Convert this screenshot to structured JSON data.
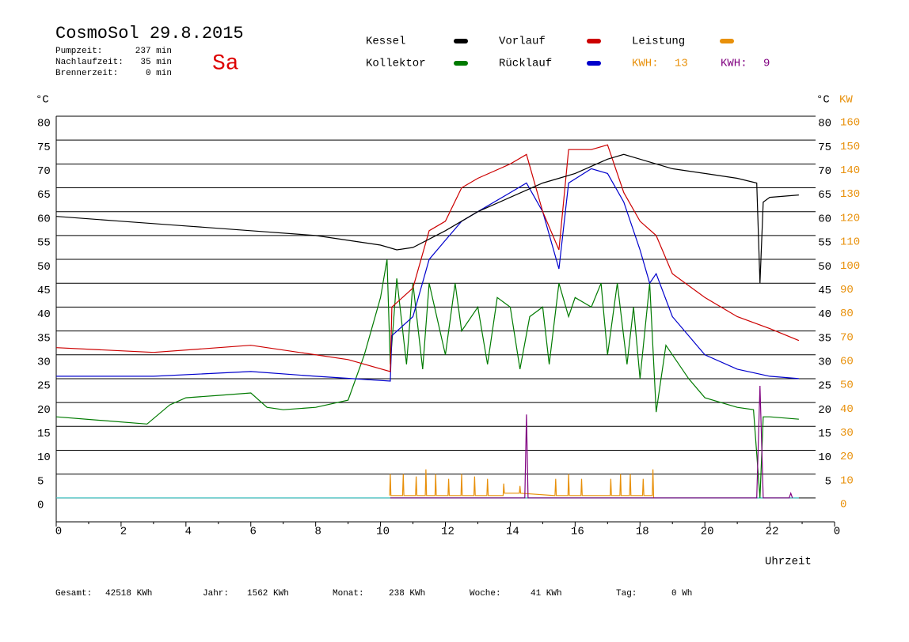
{
  "header": {
    "title": "CosmoSol 29.8.2015",
    "day": "Sa",
    "stats": [
      {
        "label": "Pumpzeit:",
        "value": "237 min"
      },
      {
        "label": "Nachlaufzeit:",
        "value": "35 min"
      },
      {
        "label": "Brennerzeit:",
        "value": "0 min"
      }
    ]
  },
  "chart_data": {
    "type": "line",
    "y_label": "°C",
    "y_right_label": "°C",
    "y2_label": "KW",
    "x_label": "Uhrzeit",
    "xlim": [
      0,
      24
    ],
    "xticks": [
      0,
      2,
      4,
      6,
      8,
      10,
      12,
      14,
      16,
      18,
      20,
      22,
      {
        "value": 24,
        "label": "0"
      }
    ],
    "ylim": [
      -5,
      80
    ],
    "yticks": [
      0,
      5,
      10,
      15,
      20,
      25,
      30,
      35,
      40,
      45,
      50,
      55,
      60,
      65,
      70,
      75,
      80
    ],
    "y_right_ticks": [
      5,
      10,
      15,
      20,
      25,
      30,
      35,
      40,
      45,
      50,
      55,
      60,
      65,
      70,
      75,
      80
    ],
    "y2lim": [
      -10,
      160
    ],
    "y2ticks": [
      0,
      10,
      20,
      30,
      40,
      50,
      60,
      70,
      80,
      90,
      100,
      110,
      120,
      130,
      140,
      150,
      160
    ],
    "grid": true,
    "series": [
      {
        "name": "Kessel",
        "color": "#000000",
        "x": [
          0,
          2,
          4,
          6,
          8,
          10,
          10.5,
          11,
          12,
          13,
          14,
          15,
          15.5,
          16,
          17,
          17.5,
          18,
          19,
          20,
          21,
          21.6,
          21.7,
          21.8,
          22,
          22.9
        ],
        "values": [
          59,
          58,
          57,
          56,
          55,
          53,
          52,
          52.5,
          56,
          60,
          63,
          66,
          67,
          68,
          71,
          72,
          71,
          69,
          68,
          67,
          66,
          45,
          62,
          63,
          63.5
        ]
      },
      {
        "name": "Vorlauf",
        "color": "#cc0000",
        "x": [
          0,
          3,
          6,
          9,
          10.3,
          10.35,
          11,
          11.5,
          12,
          12.5,
          13,
          14,
          14.5,
          15,
          15.5,
          15.8,
          16.5,
          17,
          17.5,
          18,
          18.5,
          19,
          20,
          21,
          22,
          22.9
        ],
        "values": [
          31.5,
          30.5,
          32,
          29,
          26.5,
          40,
          44,
          56,
          58,
          65,
          67,
          70,
          72,
          60,
          52,
          73,
          73,
          74,
          64,
          58,
          55,
          47,
          42,
          38,
          35.5,
          33
        ]
      },
      {
        "name": "Leistung",
        "color": "#e8900a",
        "axis": "y2",
        "x": [
          10.28,
          10.3,
          10.32,
          10.68,
          10.7,
          10.72,
          11.08,
          11.1,
          11.12,
          11.38,
          11.4,
          11.42,
          11.68,
          11.7,
          11.72,
          12.08,
          12.1,
          12.12,
          12.48,
          12.5,
          12.52,
          12.88,
          12.9,
          12.92,
          13.28,
          13.3,
          13.32,
          13.78,
          13.8,
          13.82,
          14.28,
          14.3,
          14.32,
          15.38,
          15.4,
          15.42,
          15.78,
          15.8,
          15.82,
          16.18,
          16.2,
          16.22,
          17.08,
          17.1,
          17.12,
          17.38,
          17.4,
          17.42,
          17.68,
          17.7,
          17.72,
          18.08,
          18.1,
          18.12,
          18.38,
          18.4,
          18.42
        ],
        "values": [
          1,
          10,
          1,
          1,
          10,
          1,
          1,
          9,
          1,
          1,
          12,
          1,
          1,
          10,
          1,
          1,
          8,
          1,
          1,
          10,
          1,
          1,
          9,
          1,
          1,
          8,
          1,
          1,
          6,
          2,
          2,
          5,
          2,
          1,
          8,
          1,
          1,
          10,
          1,
          1,
          8,
          1,
          1,
          8,
          1,
          1,
          10,
          1,
          1,
          10,
          1,
          1,
          8,
          1,
          1,
          12,
          0
        ]
      },
      {
        "name": "Kollektor",
        "color": "#007a00",
        "x": [
          0,
          2.8,
          3.5,
          4,
          5,
          6,
          6.5,
          7,
          8,
          9,
          9.5,
          10,
          10.2,
          10.3,
          10.5,
          10.8,
          11,
          11.3,
          11.5,
          12,
          12.3,
          12.5,
          13,
          13.3,
          13.6,
          14,
          14.3,
          14.6,
          15,
          15.2,
          15.5,
          15.8,
          16,
          16.5,
          16.8,
          17,
          17.3,
          17.6,
          17.8,
          18,
          18.3,
          18.5,
          18.8,
          19.5,
          20,
          21,
          21.5,
          21.7,
          21.8,
          22,
          22.9
        ],
        "values": [
          17,
          15.5,
          19.5,
          21,
          21.5,
          22,
          19,
          18.5,
          19,
          20.5,
          30,
          42,
          50,
          28,
          46,
          28,
          45,
          27,
          45,
          30,
          45,
          35,
          40,
          28,
          42,
          40,
          27,
          38,
          40,
          28,
          45,
          38,
          42,
          40,
          45,
          30,
          45,
          28,
          40,
          25,
          45,
          18,
          32,
          25,
          21,
          19,
          18.5,
          0,
          17,
          17,
          16.5
        ]
      },
      {
        "name": "Rücklauf",
        "color": "#0000cc",
        "x": [
          0,
          3,
          6,
          8,
          10.3,
          10.35,
          11,
          11.5,
          12,
          12.5,
          13,
          14,
          14.5,
          15,
          15.5,
          15.8,
          16.5,
          17,
          17.5,
          18,
          18.3,
          18.5,
          19,
          20,
          21,
          22,
          22.9
        ],
        "values": [
          25.5,
          25.5,
          26.5,
          25.5,
          24.5,
          34,
          38,
          50,
          54,
          58,
          60,
          64,
          66,
          60,
          48,
          66,
          69,
          68,
          62,
          52,
          45,
          47,
          38,
          30,
          27,
          25.5,
          25
        ]
      },
      {
        "color": "#800080",
        "axis": "y2",
        "x": [
          10.3,
          14.45,
          14.5,
          14.55,
          21.6,
          21.7,
          21.8,
          22.6,
          22.65,
          22.7
        ],
        "values": [
          0,
          0,
          35,
          0,
          0,
          47,
          0,
          0,
          2,
          0
        ]
      },
      {
        "color": "#40d0d0",
        "x": [
          0,
          22.9
        ],
        "values": [
          0,
          0
        ]
      }
    ],
    "kwh": [
      {
        "label": "KWH:",
        "value": 13,
        "color": "#e8900a"
      },
      {
        "label": "KWH:",
        "value": 9,
        "color": "#800080"
      }
    ]
  },
  "footer": [
    {
      "label": "Gesamt:",
      "value": "42518 KWh"
    },
    {
      "label": "Jahr:",
      "value": "1562 KWh"
    },
    {
      "label": "Monat:",
      "value": "238 KWh"
    },
    {
      "label": "Woche:",
      "value": "41 KWh"
    },
    {
      "label": "Tag:",
      "value": "0 Wh"
    }
  ]
}
